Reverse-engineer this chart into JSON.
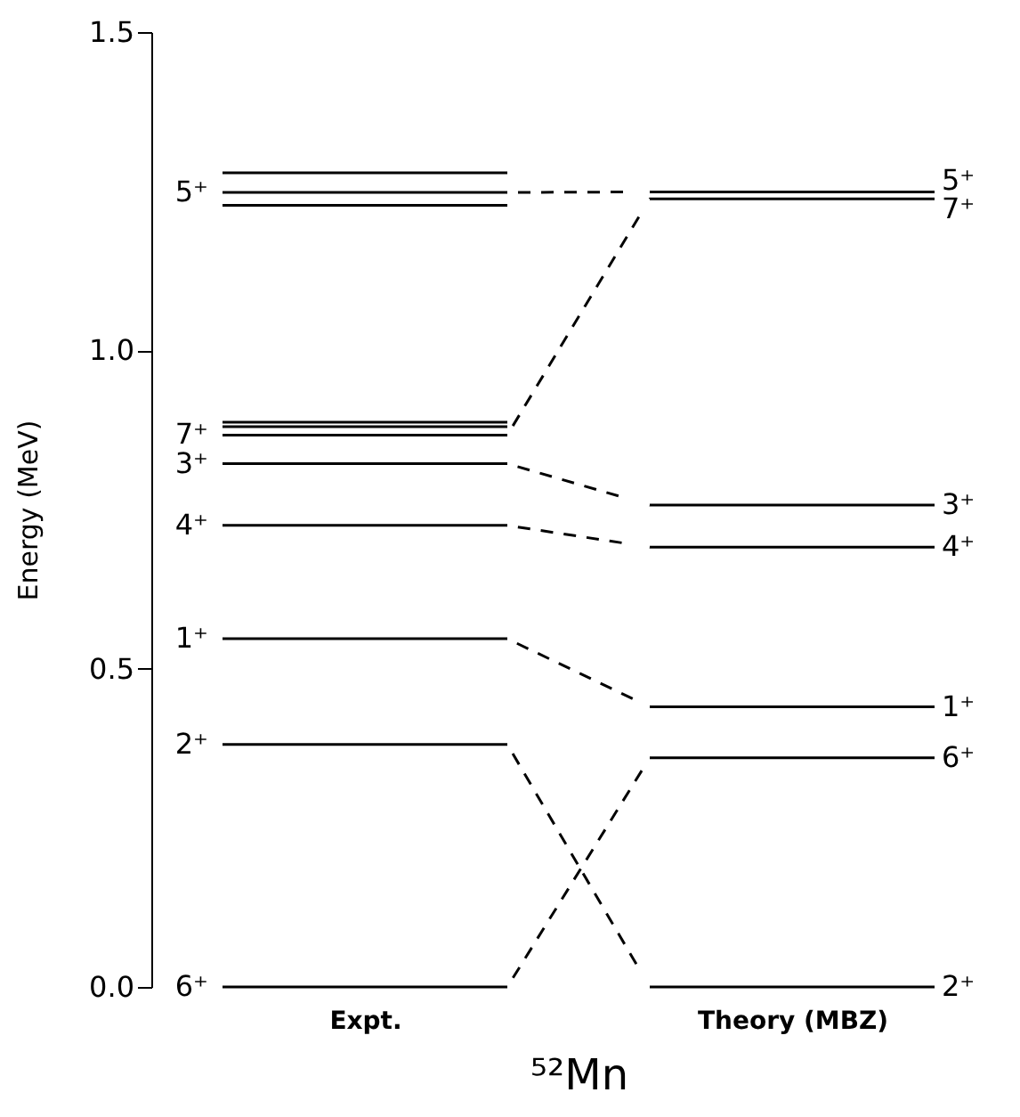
{
  "chart_data": {
    "type": "line",
    "xlabel": "⁵²Mn",
    "ylabel": "Energy (MeV)",
    "categories": [
      null,
      "Expt.",
      null,
      null,
      "Theory (MBZ)",
      null
    ],
    "ylim": [
      0,
      1.5
    ],
    "yticks": [
      {
        "value": 0,
        "label": "0.0"
      },
      {
        "value": 0.5,
        "label": "0.5"
      },
      {
        "value": 1,
        "label": "1.0"
      },
      {
        "value": 1.5,
        "label": "1.5"
      }
    ],
    "line_style": "dashed",
    "grid": false,
    "legend": false,
    "series": [
      {
        "name": "6⁺",
        "values": [
          0,
          0,
          0,
          0.36,
          0.36,
          0.36
        ]
      },
      {
        "name": "2⁺",
        "values": [
          0.381,
          0.381,
          0.381,
          0,
          0,
          0
        ]
      },
      {
        "name": "1⁺",
        "values": [
          0.547,
          0.547,
          0.547,
          0.44,
          0.44,
          0.44
        ]
      },
      {
        "name": "4⁺",
        "values": [
          0.725,
          0.725,
          0.725,
          0.691,
          0.691,
          0.691
        ]
      },
      {
        "name": "3⁺",
        "values": [
          0.822,
          0.822,
          0.822,
          0.757,
          0.757,
          0.757
        ]
      },
      {
        "name": "7⁺",
        "values": [
          0.867,
          0.867,
          0.867,
          1.238,
          1.238,
          1.238
        ]
      },
      {
        "values": [
          0.88,
          0.88,
          0.88,
          null,
          null,
          null
        ]
      },
      {
        "values": [
          0.887,
          0.887,
          0.887,
          null,
          null,
          null
        ]
      },
      {
        "values": [
          1.228,
          1.228,
          1.228,
          null,
          null,
          null
        ]
      },
      {
        "name": "5⁺",
        "values": [
          1.248,
          1.248,
          1.248,
          1.249,
          1.249,
          1.249
        ]
      },
      {
        "values": [
          1.279,
          1.279,
          1.279,
          null,
          null,
          null
        ]
      }
    ]
  }
}
